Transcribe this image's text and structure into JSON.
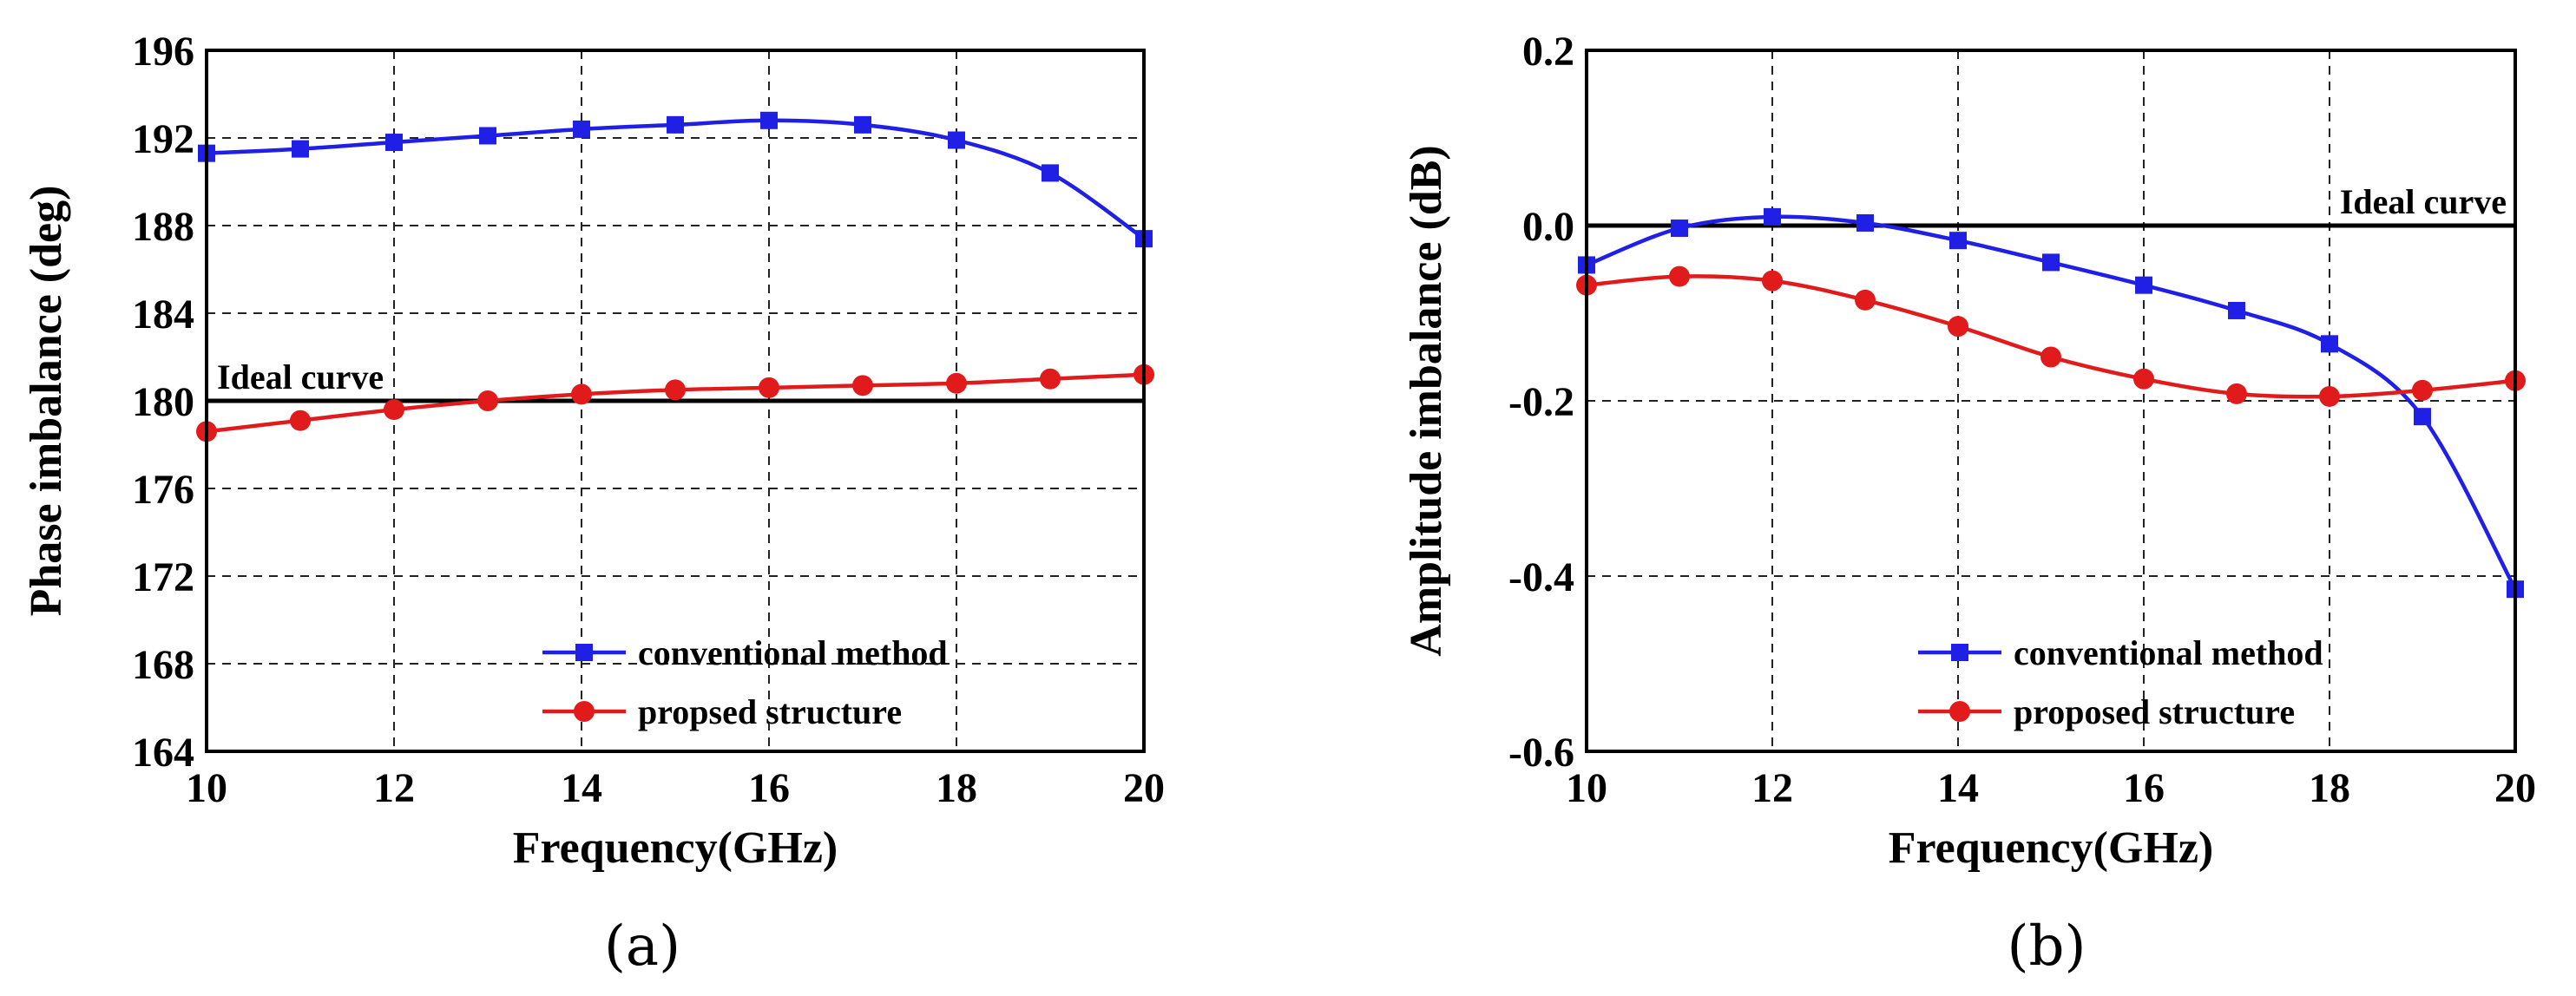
{
  "chart_data": [
    {
      "type": "line",
      "caption": "(a)",
      "xlabel": "Frequency(GHz)",
      "ylabel": "Phase imbalance (deg)",
      "xlim": [
        10,
        20
      ],
      "ylim": [
        164,
        196
      ],
      "xticks": [
        "10",
        "12",
        "14",
        "16",
        "18",
        "20"
      ],
      "yticks": [
        "164",
        "168",
        "172",
        "176",
        "180",
        "184",
        "188",
        "192",
        "196"
      ],
      "grid": true,
      "ideal": {
        "label": "Ideal curve",
        "value": 180
      },
      "legend_position": "bottom-right",
      "x": [
        10,
        11,
        12,
        13,
        14,
        15,
        16,
        17,
        18,
        19,
        20
      ],
      "series": [
        {
          "name": "conventional method",
          "color": "#1f1fe6",
          "marker": "square",
          "values": [
            191.3,
            191.5,
            191.8,
            192.1,
            192.4,
            192.6,
            192.8,
            192.6,
            191.9,
            190.4,
            187.4
          ]
        },
        {
          "name": "propsed structure",
          "color": "#e11b1b",
          "marker": "circle",
          "values": [
            178.6,
            179.1,
            179.6,
            180.0,
            180.3,
            180.5,
            180.6,
            180.7,
            180.8,
            181.0,
            181.2
          ]
        }
      ]
    },
    {
      "type": "line",
      "caption": "(b)",
      "xlabel": "Frequency(GHz)",
      "ylabel": "Amplitude imbalance (dB)",
      "xlim": [
        10,
        20
      ],
      "ylim": [
        -0.6,
        0.2
      ],
      "xticks": [
        "10",
        "12",
        "14",
        "16",
        "18",
        "20"
      ],
      "yticks": [
        "-0.6",
        "-0.4",
        "-0.2",
        "0.0",
        "0.2"
      ],
      "grid": true,
      "ideal": {
        "label": "Ideal curve",
        "value": 0.0
      },
      "legend_position": "bottom-right",
      "x": [
        10,
        11,
        12,
        13,
        14,
        15,
        16,
        17,
        18,
        19,
        20
      ],
      "series": [
        {
          "name": "conventional method",
          "color": "#1f1fe6",
          "marker": "square",
          "values": [
            -0.045,
            -0.003,
            0.01,
            0.003,
            -0.017,
            -0.042,
            -0.068,
            -0.097,
            -0.135,
            -0.218,
            -0.415
          ]
        },
        {
          "name": "proposed structure",
          "color": "#e11b1b",
          "marker": "circle",
          "values": [
            -0.068,
            -0.058,
            -0.063,
            -0.085,
            -0.115,
            -0.15,
            -0.175,
            -0.192,
            -0.195,
            -0.188,
            -0.177
          ]
        }
      ]
    }
  ]
}
